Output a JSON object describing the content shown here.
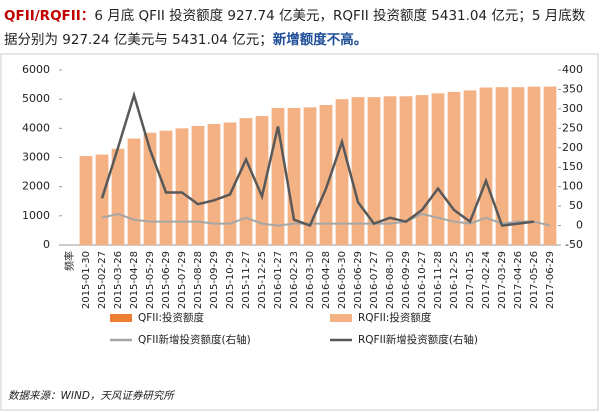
{
  "header": {
    "lead": "QFII/RQFII：",
    "text": "6 月底 QFII 投资额度 927.74 亿美元，RQFII 投资额度 5431.04 亿元；5 月底数据分别为 927.24 亿美元与 5431.04 亿元；",
    "highlight": "新增额度不高。"
  },
  "chart_data": {
    "type": "bar-line",
    "categories": [
      "频率",
      "2015-01-30",
      "2015-02-27",
      "2015-03-26",
      "2015-04-28",
      "2015-05-29",
      "2015-06-29",
      "2015-07-29",
      "2015-08-28",
      "2015-09-29",
      "2015-10-29",
      "2015-11-27",
      "2015-12-25",
      "2016-01-27",
      "2016-02-23",
      "2016-03-30",
      "2016-04-28",
      "2016-05-30",
      "2016-06-29",
      "2016-07-27",
      "2016-08-30",
      "2016-09-29",
      "2016-10-27",
      "2016-11-28",
      "2016-12-25",
      "2017-01-25",
      "2017-02-24",
      "2017-03-29",
      "2017-04-26",
      "2017-05-26",
      "2017-06-29"
    ],
    "series": [
      {
        "name": "QFII:投资额度",
        "kind": "bar",
        "color": "#ed7d31",
        "values": [
          null,
          null,
          null,
          null,
          null,
          null,
          null,
          null,
          null,
          null,
          null,
          null,
          null,
          null,
          null,
          null,
          null,
          null,
          null,
          null,
          null,
          null,
          null,
          null,
          null,
          null,
          null,
          null,
          null,
          null,
          null
        ]
      },
      {
        "name": "RQFII:投资额度",
        "kind": "bar",
        "color": "#f4b183",
        "values": [
          null,
          3050,
          3100,
          3300,
          3650,
          3850,
          3920,
          4000,
          4080,
          4150,
          4200,
          4350,
          4420,
          4700,
          4700,
          4720,
          4800,
          5000,
          5070,
          5070,
          5100,
          5100,
          5140,
          5200,
          5250,
          5300,
          5400,
          5410,
          5410,
          5431,
          5431
        ]
      },
      {
        "name": "QFII新增投资额度(右轴)",
        "kind": "line",
        "axis": "y2",
        "color": "#a6a6a6",
        "values": [
          null,
          null,
          20,
          30,
          15,
          10,
          10,
          10,
          10,
          5,
          5,
          20,
          5,
          0,
          5,
          5,
          5,
          5,
          5,
          5,
          5,
          10,
          30,
          20,
          10,
          5,
          20,
          5,
          10,
          10,
          0
        ]
      },
      {
        "name": "RQFII新增投资额度(右轴)",
        "kind": "line",
        "axis": "y2",
        "color": "#595959",
        "values": [
          null,
          null,
          70,
          200,
          335,
          195,
          85,
          85,
          55,
          65,
          80,
          170,
          75,
          255,
          15,
          0,
          95,
          215,
          60,
          5,
          20,
          10,
          40,
          95,
          40,
          10,
          115,
          0,
          5,
          10,
          null
        ]
      }
    ],
    "ylim": [
      0,
      6000
    ],
    "yticks": [
      0,
      1000,
      2000,
      3000,
      4000,
      5000,
      6000
    ],
    "y2lim": [
      -50,
      400
    ],
    "y2ticks": [
      -50,
      0,
      50,
      100,
      150,
      200,
      250,
      300,
      350,
      400
    ]
  },
  "source": "数据来源：WIND，天风证券研究所"
}
